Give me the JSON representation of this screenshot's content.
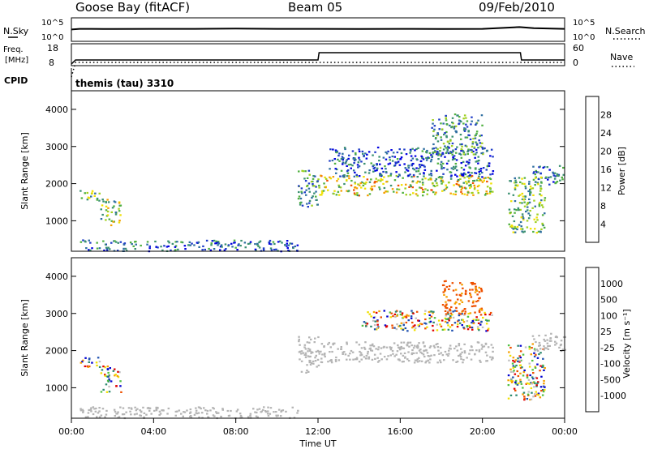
{
  "header": {
    "station": "Goose Bay (fitACF)",
    "beam": "Beam 05",
    "date": "09/Feb/2010"
  },
  "noise_panel": {
    "left_label": "N.Sky",
    "right_label": "N.Search",
    "left_ticks": [
      "10^5",
      "10^0"
    ],
    "right_ticks": [
      "10^5",
      "10^0"
    ]
  },
  "freq_panel": {
    "left_label_1": "Freq.",
    "left_label_2": "[MHz]",
    "right_label": "Nave",
    "left_ticks": [
      "18",
      "8"
    ],
    "right_ticks": [
      "60",
      "0"
    ]
  },
  "cpid_panel": {
    "label": "CPID",
    "value": "themis (tau) 3310"
  },
  "colors": {
    "power_scale": [
      "#0000e0",
      "#1e3cc8",
      "#2e6ea0",
      "#3a9070",
      "#50b040",
      "#a0d020",
      "#f0e000",
      "#f5a000",
      "#ee5000",
      "#e00000"
    ],
    "velocity_scale": [
      "#0000d0",
      "#1e50b0",
      "#2e8a70",
      "#50c040",
      "#c0c0c0",
      "#f0e000",
      "#f5a000",
      "#ee5000",
      "#e00000"
    ],
    "ground_scatter": "#b4b4b4"
  },
  "chart_data": [
    {
      "type": "line",
      "title": "Goose Bay (fitACF) Beam 05 09/Feb/2010",
      "xlabel": "",
      "ylabel": "N.Sky",
      "x_hours": [
        0,
        0.4,
        1,
        2,
        4,
        6,
        8,
        10,
        12,
        14,
        16,
        18,
        20,
        21.8,
        22.5,
        24
      ],
      "series": [
        {
          "name": "N.Sky",
          "log10_values": [
            2.4,
            2.6,
            2.6,
            2.55,
            2.6,
            2.6,
            2.65,
            2.6,
            2.6,
            2.55,
            2.6,
            2.55,
            2.6,
            3.1,
            2.8,
            2.6
          ]
        }
      ]
    },
    {
      "type": "line",
      "ylabel": "Freq. [MHz]",
      "ylim": [
        8,
        18
      ],
      "x_hours": [
        0,
        0.2,
        12.0,
        12.05,
        21.85,
        21.9,
        24
      ],
      "series": [
        {
          "name": "Freq.",
          "values": [
            8,
            10.5,
            10.5,
            15,
            15,
            10.5,
            10.5
          ]
        },
        {
          "name": "Nave",
          "values": [
            0,
            9,
            9,
            9,
            9,
            9,
            9
          ]
        }
      ]
    },
    {
      "type": "heatmap",
      "xlabel": "Time UT",
      "ylabel": "Slant Range [km]",
      "colorbar_label": "Power [dB]",
      "colorbar_ticks": [
        4,
        8,
        12,
        16,
        20,
        24,
        28
      ],
      "ylim": [
        180,
        4500
      ],
      "y_ticks": [
        1000,
        2000,
        3000,
        4000
      ],
      "regions": [
        {
          "t0": 0.4,
          "t1": 1.4,
          "r0": 1550,
          "r1": 1850,
          "level": 0.45
        },
        {
          "t0": 1.4,
          "t1": 2.4,
          "r0": 900,
          "r1": 1600,
          "level": 0.5
        },
        {
          "t0": 0.4,
          "t1": 11.0,
          "r0": 200,
          "r1": 500,
          "level": 0.25
        },
        {
          "t0": 11.0,
          "t1": 12.0,
          "r0": 1400,
          "r1": 2400,
          "level": 0.35
        },
        {
          "t0": 12.0,
          "t1": 20.5,
          "r0": 1700,
          "r1": 2250,
          "level": 0.6
        },
        {
          "t0": 12.5,
          "t1": 20.5,
          "r0": 2200,
          "r1": 3000,
          "level": 0.2
        },
        {
          "t0": 17.5,
          "t1": 20.0,
          "r0": 2800,
          "r1": 3900,
          "level": 0.35
        },
        {
          "t0": 21.2,
          "t1": 23.0,
          "r0": 700,
          "r1": 2200,
          "level": 0.45
        },
        {
          "t0": 22.4,
          "t1": 24.0,
          "r0": 2000,
          "r1": 2500,
          "level": 0.25
        }
      ]
    },
    {
      "type": "heatmap",
      "xlabel": "Time UT",
      "ylabel": "Slant Range [km]",
      "colorbar_label": "Velocity [m s⁻¹]",
      "colorbar_ticks": [
        1000,
        500,
        100,
        25,
        -25,
        -100,
        -500,
        -1000
      ],
      "ylim": [
        180,
        4500
      ],
      "y_ticks": [
        1000,
        2000,
        3000,
        4000
      ],
      "x_ticks": [
        "00:00",
        "04:00",
        "08:00",
        "12:00",
        "16:00",
        "20:00",
        "00:00"
      ],
      "regions": [
        {
          "t0": 0.4,
          "t1": 1.4,
          "r0": 1550,
          "r1": 1850,
          "kind": "ionospheric"
        },
        {
          "t0": 1.4,
          "t1": 2.4,
          "r0": 900,
          "r1": 1600,
          "kind": "ionospheric"
        },
        {
          "t0": 0.4,
          "t1": 11.0,
          "r0": 200,
          "r1": 500,
          "kind": "ground"
        },
        {
          "t0": 11.0,
          "t1": 12.0,
          "r0": 1400,
          "r1": 2400,
          "kind": "ground"
        },
        {
          "t0": 12.0,
          "t1": 20.5,
          "r0": 1700,
          "r1": 2250,
          "kind": "ground"
        },
        {
          "t0": 14.0,
          "t1": 20.5,
          "r0": 2550,
          "r1": 3100,
          "kind": "ionospheric"
        },
        {
          "t0": 18.0,
          "t1": 20.0,
          "r0": 3000,
          "r1": 3900,
          "kind": "receding"
        },
        {
          "t0": 21.2,
          "t1": 23.0,
          "r0": 700,
          "r1": 2200,
          "kind": "ionospheric"
        },
        {
          "t0": 22.4,
          "t1": 24.0,
          "r0": 2000,
          "r1": 2500,
          "kind": "ground"
        }
      ]
    }
  ]
}
